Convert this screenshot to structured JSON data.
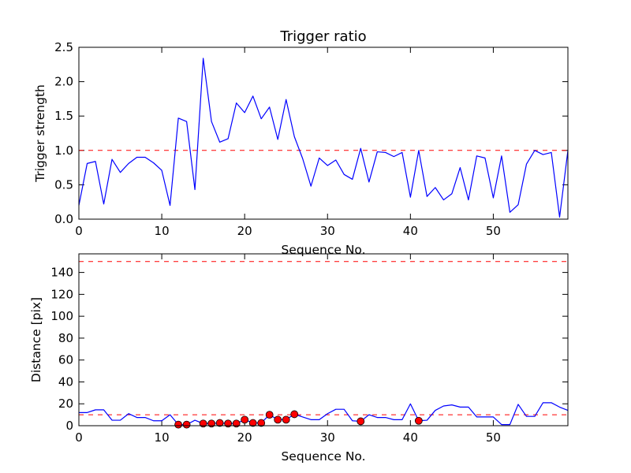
{
  "chart_data": [
    {
      "type": "line",
      "title": "Trigger ratio",
      "xlabel": "Sequence No.",
      "ylabel": "Trigger strength",
      "xlim": [
        0,
        59
      ],
      "ylim": [
        0,
        2.5
      ],
      "xticks": [
        "0",
        "10",
        "20",
        "30",
        "40",
        "50"
      ],
      "yticks": [
        "0.0",
        "0.5",
        "1.0",
        "1.5",
        "2.0",
        "2.5"
      ],
      "grid": false,
      "threshold": {
        "value": 1.0,
        "style": "dashed",
        "color": "#ff0000"
      },
      "series": [
        {
          "color": "#0000ff",
          "x": [
            0,
            1,
            2,
            3,
            4,
            5,
            6,
            7,
            8,
            9,
            10,
            11,
            12,
            13,
            14,
            15,
            16,
            17,
            18,
            19,
            20,
            21,
            22,
            23,
            24,
            25,
            26,
            27,
            28,
            29,
            30,
            31,
            32,
            33,
            34,
            35,
            36,
            37,
            38,
            39,
            40,
            41,
            42,
            43,
            44,
            45,
            46,
            47,
            48,
            49,
            50,
            51,
            52,
            53,
            54,
            55,
            56,
            57,
            58,
            59
          ],
          "y": [
            0.2,
            0.81,
            0.84,
            0.22,
            0.87,
            0.68,
            0.81,
            0.9,
            0.9,
            0.82,
            0.71,
            0.2,
            1.47,
            1.42,
            0.43,
            2.34,
            1.42,
            1.12,
            1.17,
            1.69,
            1.55,
            1.79,
            1.46,
            1.63,
            1.16,
            1.74,
            1.2,
            0.88,
            0.48,
            0.89,
            0.78,
            0.86,
            0.65,
            0.58,
            1.03,
            0.54,
            0.98,
            0.97,
            0.91,
            0.97,
            0.32,
            1.0,
            0.33,
            0.46,
            0.28,
            0.37,
            0.75,
            0.28,
            0.92,
            0.89,
            0.31,
            0.92,
            0.1,
            0.21,
            0.8,
            1.0,
            0.94,
            0.97,
            0.03,
            1.0
          ]
        }
      ]
    },
    {
      "type": "line",
      "title": "",
      "xlabel": "Sequence No.",
      "ylabel": "Distance [pix]",
      "xlim": [
        0,
        59
      ],
      "ylim": [
        0,
        157
      ],
      "xticks": [
        "0",
        "10",
        "20",
        "30",
        "40",
        "50"
      ],
      "yticks": [
        "0",
        "20",
        "40",
        "60",
        "80",
        "100",
        "120",
        "140"
      ],
      "grid": false,
      "thresholds": [
        {
          "value": 10,
          "style": "dashed",
          "color": "#ff0000"
        },
        {
          "value": 150,
          "style": "dashed",
          "color": "#ff0000"
        }
      ],
      "series": [
        {
          "color": "#0000ff",
          "x": [
            0,
            1,
            2,
            3,
            4,
            5,
            6,
            7,
            8,
            9,
            10,
            11,
            12,
            13,
            14,
            15,
            16,
            17,
            18,
            19,
            20,
            21,
            22,
            23,
            24,
            25,
            26,
            27,
            28,
            29,
            30,
            31,
            32,
            33,
            34,
            35,
            36,
            37,
            38,
            39,
            40,
            41,
            42,
            43,
            44,
            45,
            46,
            47,
            48,
            49,
            50,
            51,
            52,
            53,
            54,
            55,
            56,
            57,
            58,
            59
          ],
          "y": [
            12,
            12,
            14.5,
            14.5,
            5,
            5,
            11,
            7.5,
            7.5,
            4.5,
            4.5,
            10,
            1,
            1,
            5,
            2,
            2,
            2.5,
            2,
            2,
            5.5,
            2.5,
            2.5,
            10,
            5.5,
            5.5,
            10.5,
            8,
            5.5,
            5.5,
            11,
            15,
            15,
            4.5,
            4,
            10,
            7.5,
            7.5,
            5.5,
            5.5,
            20,
            4.5,
            5,
            14,
            18,
            19,
            17,
            17,
            8,
            8,
            8,
            1,
            1,
            19.5,
            8.5,
            8.5,
            21,
            21,
            17,
            14
          ]
        }
      ],
      "markers": {
        "color": "#ff0000",
        "x": [
          12,
          13,
          15,
          16,
          17,
          18,
          19,
          20,
          21,
          22,
          23,
          24,
          25,
          26,
          34,
          41
        ],
        "y": [
          1,
          1,
          2,
          2,
          2.5,
          2,
          2,
          5.5,
          2.5,
          2.5,
          10,
          5.5,
          5.5,
          10.5,
          4,
          4.5
        ]
      }
    }
  ]
}
